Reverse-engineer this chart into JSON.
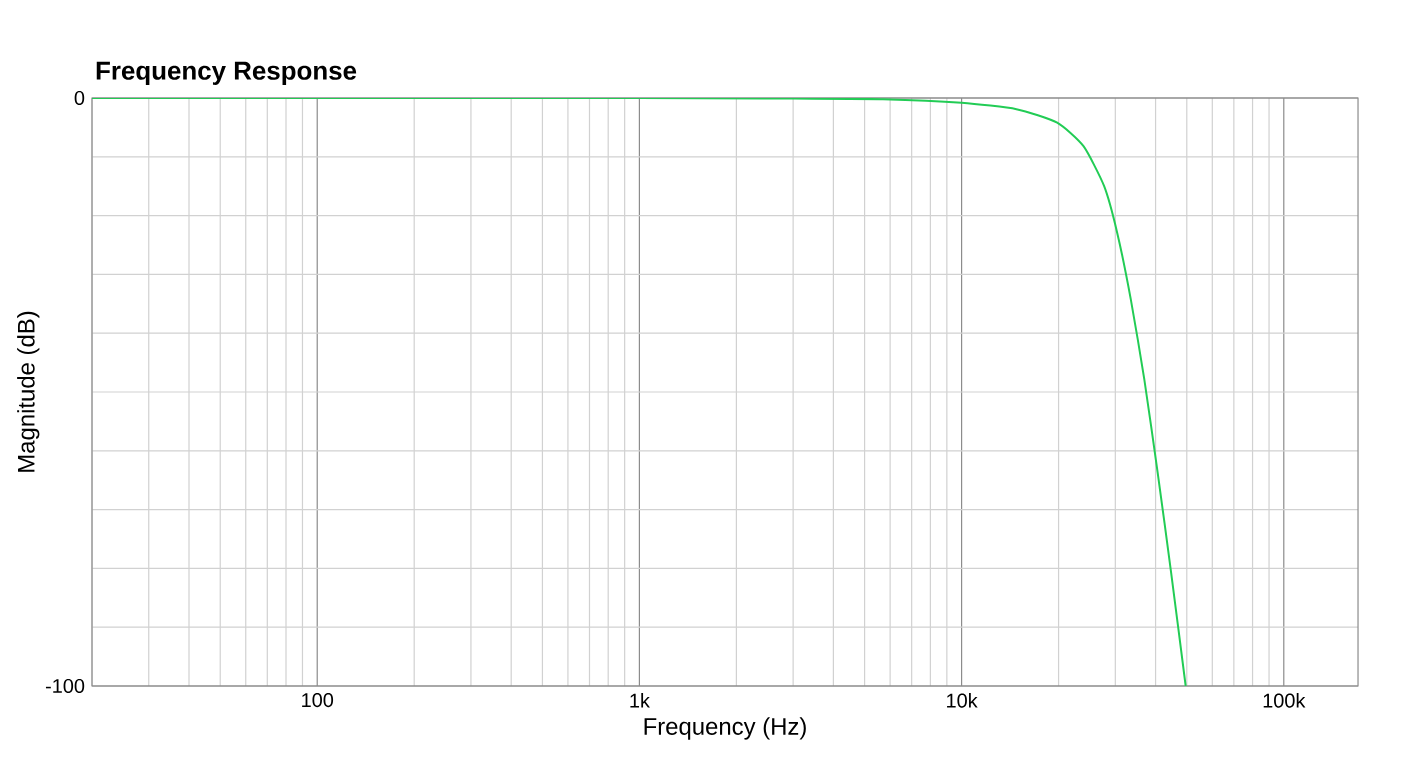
{
  "chart_data": {
    "type": "line",
    "title": "Frequency Response",
    "xlabel": "Frequency (Hz)",
    "ylabel": "Magnitude (dB)",
    "log": "x",
    "grid": true,
    "marker": "none",
    "line_style": "solid",
    "xlim": [
      20,
      170000
    ],
    "ylim": [
      -100,
      0
    ],
    "xticks": [
      {
        "value": 20,
        "label": null
      },
      {
        "value": 30,
        "label": null
      },
      {
        "value": 40,
        "label": null
      },
      {
        "value": 50,
        "label": null
      },
      {
        "value": 60,
        "label": null
      },
      {
        "value": 70,
        "label": null
      },
      {
        "value": 80,
        "label": null
      },
      {
        "value": 90,
        "label": null
      },
      100,
      {
        "value": 200,
        "label": null
      },
      {
        "value": 300,
        "label": null
      },
      {
        "value": 400,
        "label": null
      },
      {
        "value": 500,
        "label": null
      },
      {
        "value": 600,
        "label": null
      },
      {
        "value": 700,
        "label": null
      },
      {
        "value": 800,
        "label": null
      },
      {
        "value": 900,
        "label": null
      },
      {
        "value": 1000,
        "label": "1k"
      },
      {
        "value": 2000,
        "label": null
      },
      {
        "value": 3000,
        "label": null
      },
      {
        "value": 4000,
        "label": null
      },
      {
        "value": 5000,
        "label": null
      },
      {
        "value": 6000,
        "label": null
      },
      {
        "value": 7000,
        "label": null
      },
      {
        "value": 8000,
        "label": null
      },
      {
        "value": 9000,
        "label": null
      },
      {
        "value": 10000,
        "label": "10k"
      },
      {
        "value": 20000,
        "label": null
      },
      {
        "value": 30000,
        "label": null
      },
      {
        "value": 40000,
        "label": null
      },
      {
        "value": 50000,
        "label": null
      },
      {
        "value": 60000,
        "label": null
      },
      {
        "value": 70000,
        "label": null
      },
      {
        "value": 80000,
        "label": null
      },
      {
        "value": 90000,
        "label": null
      },
      {
        "value": 100000,
        "label": "100k"
      }
    ],
    "yticks": [
      {
        "value": -100,
        "label": "-100"
      },
      {
        "value": -90,
        "label": null
      },
      {
        "value": -80,
        "label": null
      },
      {
        "value": -70,
        "label": null
      },
      {
        "value": -60,
        "label": null
      },
      {
        "value": -50,
        "label": null
      },
      {
        "value": -40,
        "label": null
      },
      {
        "value": -30,
        "label": null
      },
      {
        "value": -20,
        "label": null
      },
      {
        "value": -10,
        "label": null
      },
      0
    ],
    "x": [
      20,
      1000,
      3000,
      5700,
      10000,
      14800,
      19800,
      23900,
      27700,
      30400,
      33500,
      36900,
      40600,
      44700,
      49600
    ],
    "series": [
      {
        "color": "#22cc55",
        "values": [
          0,
          0,
          -0.1,
          -0.2,
          -0.8,
          -1.9,
          -4.2,
          -8.2,
          -15,
          -22.9,
          -34.2,
          -47.8,
          -63.7,
          -80.7,
          -100
        ]
      }
    ]
  }
}
